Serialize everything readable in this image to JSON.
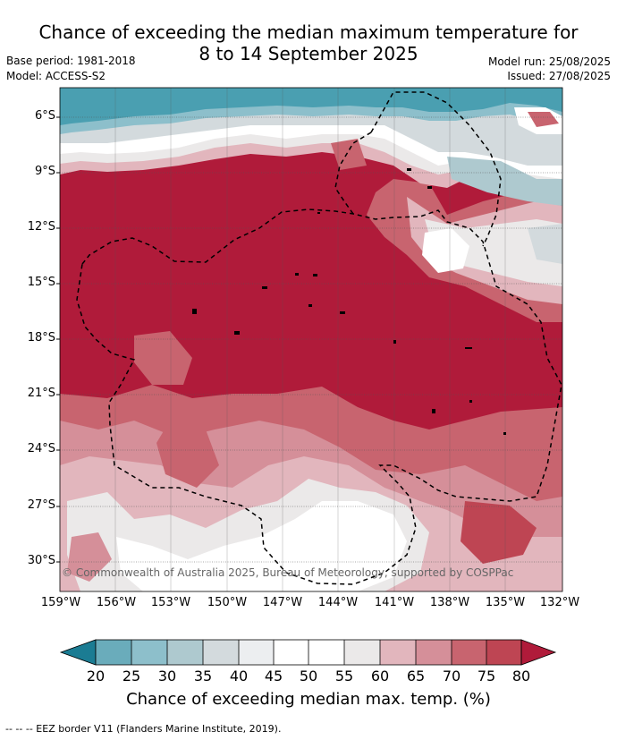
{
  "header": {
    "title_line1": "Chance of exceeding the median maximum temperature for",
    "title_line2": "8 to 14 September 2025",
    "base_period": "Base period: 1981-2018",
    "model": "Model: ACCESS-S2",
    "model_run": "Model run: 25/08/2025",
    "issued": "Issued: 27/08/2025"
  },
  "map": {
    "lat_labels": [
      "6°S",
      "9°S",
      "12°S",
      "15°S",
      "18°S",
      "21°S",
      "24°S",
      "27°S",
      "30°S"
    ],
    "lon_labels": [
      "159°W",
      "156°W",
      "153°W",
      "150°W",
      "147°W",
      "144°W",
      "141°W",
      "138°W",
      "135°W",
      "132°W"
    ],
    "copyright": "© Commonwealth of Australia 2025, Bureau of Meteorology, supported by COSPPac"
  },
  "colorbar": {
    "ticks": [
      "20",
      "25",
      "30",
      "35",
      "40",
      "45",
      "50",
      "55",
      "60",
      "65",
      "70",
      "75",
      "80"
    ],
    "colors": [
      "#1b7c93",
      "#6aacbb",
      "#8dbfcb",
      "#aec9cf",
      "#d3dadd",
      "#eceef0",
      "#ffffff",
      "#ffffff",
      "#ebe9e9",
      "#e2b6bd",
      "#d58f99",
      "#c8646f",
      "#be4553",
      "#b01b3a"
    ],
    "title": "Chance of exceeding median max. temp. (%)"
  },
  "footer": {
    "eez_note": "--  --  -- EEZ border V11 (Flanders Marine Institute, 2019)."
  }
}
